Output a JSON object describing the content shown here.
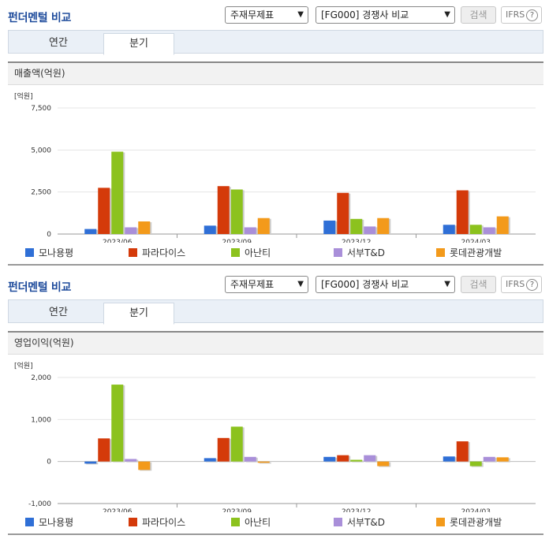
{
  "panels": [
    {
      "title": "펀더멘털 비교",
      "select1": "주재무제표",
      "select2": "[FG000] 경쟁사 비교",
      "search_label": "검색",
      "ifrs_label": "IFRS",
      "help_glyph": "?",
      "tabs": [
        "연간",
        "분기"
      ],
      "active_tab": 1,
      "section_title": "매출액(억원)",
      "unit_label": "[억원]"
    },
    {
      "title": "펀더멘털 비교",
      "select1": "주재무제표",
      "select2": "[FG000] 경쟁사 비교",
      "search_label": "검색",
      "ifrs_label": "IFRS",
      "help_glyph": "?",
      "tabs": [
        "연간",
        "분기"
      ],
      "active_tab": 1,
      "section_title": "영업이익(억원)",
      "unit_label": "[억원]"
    }
  ],
  "chart_data": [
    {
      "type": "bar",
      "title": "매출액(억원)",
      "ylabel": "[억원]",
      "categories": [
        "2023/06",
        "2023/09",
        "2023/12",
        "2024/03"
      ],
      "ylim": [
        0,
        7500
      ],
      "yticks": [
        0,
        2500,
        5000,
        7500
      ],
      "ytick_labels": [
        "0",
        "2,500",
        "5,000",
        "7,500"
      ],
      "series": [
        {
          "name": "모나용평",
          "color": "#2f6fd6",
          "values": [
            300,
            500,
            800,
            550
          ]
        },
        {
          "name": "파라다이스",
          "color": "#d43a0a",
          "values": [
            2750,
            2850,
            2450,
            2600
          ]
        },
        {
          "name": "아난티",
          "color": "#8cc21e",
          "values": [
            4900,
            2650,
            900,
            550
          ]
        },
        {
          "name": "서부T&D",
          "color": "#a98fd9",
          "values": [
            400,
            400,
            450,
            400
          ]
        },
        {
          "name": "롯데관광개발",
          "color": "#f39a1b",
          "values": [
            750,
            950,
            950,
            1050
          ]
        }
      ]
    },
    {
      "type": "bar",
      "title": "영업이익(억원)",
      "ylabel": "[억원]",
      "categories": [
        "2023/06",
        "2023/09",
        "2023/12",
        "2024/03"
      ],
      "ylim": [
        -1000,
        2000
      ],
      "yticks": [
        -1000,
        0,
        1000,
        2000
      ],
      "ytick_labels": [
        "-1,000",
        "0",
        "1,000",
        "2,000"
      ],
      "series": [
        {
          "name": "모나용평",
          "color": "#2f6fd6",
          "values": [
            -50,
            80,
            110,
            120
          ]
        },
        {
          "name": "파라다이스",
          "color": "#d43a0a",
          "values": [
            550,
            560,
            150,
            480
          ]
        },
        {
          "name": "아난티",
          "color": "#8cc21e",
          "values": [
            1830,
            830,
            40,
            -110
          ]
        },
        {
          "name": "서부T&D",
          "color": "#a98fd9",
          "values": [
            60,
            110,
            150,
            110
          ]
        },
        {
          "name": "롯데관광개발",
          "color": "#f39a1b",
          "values": [
            -200,
            -30,
            -110,
            100
          ]
        }
      ]
    }
  ]
}
